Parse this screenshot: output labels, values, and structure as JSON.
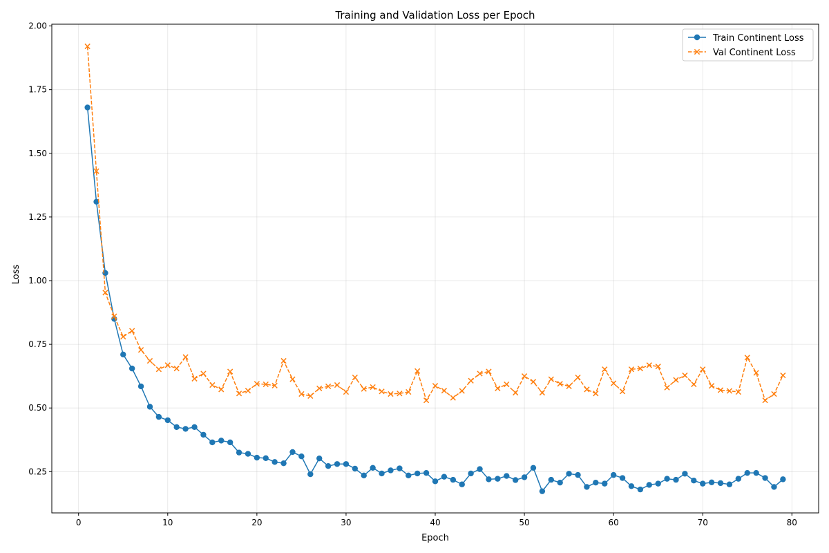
{
  "chart_data": {
    "type": "line",
    "title": "Training and Validation Loss per Epoch",
    "xlabel": "Epoch",
    "ylabel": "Loss",
    "xlim": [
      -3,
      83
    ],
    "ylim": [
      0.088,
      2.007
    ],
    "xticks": [
      0,
      10,
      20,
      30,
      40,
      50,
      60,
      70,
      80
    ],
    "yticks": [
      0.25,
      0.5,
      0.75,
      1.0,
      1.25,
      1.5,
      1.75,
      2.0
    ],
    "ytick_labels": [
      "0.25",
      "0.50",
      "0.75",
      "1.00",
      "1.25",
      "1.50",
      "1.75",
      "2.00"
    ],
    "grid": true,
    "legend_position": "top-right",
    "x": [
      1,
      2,
      3,
      4,
      5,
      6,
      7,
      8,
      9,
      10,
      11,
      12,
      13,
      14,
      15,
      16,
      17,
      18,
      19,
      20,
      21,
      22,
      23,
      24,
      25,
      26,
      27,
      28,
      29,
      30,
      31,
      32,
      33,
      34,
      35,
      36,
      37,
      38,
      39,
      40,
      41,
      42,
      43,
      44,
      45,
      46,
      47,
      48,
      49,
      50,
      51,
      52,
      53,
      54,
      55,
      56,
      57,
      58,
      59,
      60,
      61,
      62,
      63,
      64,
      65,
      66,
      67,
      68,
      69,
      70,
      71,
      72,
      73,
      74,
      75,
      76,
      77,
      78,
      79
    ],
    "series": [
      {
        "name": "Train Continent Loss",
        "color": "#1f77b4",
        "marker": "circle",
        "linestyle": "solid",
        "values": [
          1.68,
          1.31,
          1.03,
          0.85,
          0.71,
          0.655,
          0.585,
          0.505,
          0.465,
          0.452,
          0.425,
          0.418,
          0.425,
          0.395,
          0.365,
          0.372,
          0.365,
          0.325,
          0.32,
          0.305,
          0.303,
          0.288,
          0.283,
          0.327,
          0.31,
          0.24,
          0.302,
          0.272,
          0.28,
          0.28,
          0.262,
          0.235,
          0.265,
          0.243,
          0.255,
          0.263,
          0.235,
          0.243,
          0.245,
          0.212,
          0.23,
          0.218,
          0.2,
          0.243,
          0.26,
          0.22,
          0.222,
          0.233,
          0.217,
          0.228,
          0.265,
          0.173,
          0.218,
          0.207,
          0.242,
          0.237,
          0.19,
          0.207,
          0.203,
          0.237,
          0.225,
          0.193,
          0.18,
          0.198,
          0.203,
          0.222,
          0.218,
          0.242,
          0.215,
          0.203,
          0.208,
          0.205,
          0.2,
          0.222,
          0.245,
          0.245,
          0.225,
          0.19,
          0.22
        ]
      },
      {
        "name": "Val Continent Loss",
        "color": "#ff7f0e",
        "marker": "x",
        "linestyle": "dashed",
        "values": [
          1.92,
          1.43,
          0.953,
          0.86,
          0.78,
          0.803,
          0.728,
          0.685,
          0.652,
          0.668,
          0.655,
          0.7,
          0.615,
          0.635,
          0.59,
          0.573,
          0.643,
          0.557,
          0.568,
          0.595,
          0.593,
          0.588,
          0.685,
          0.613,
          0.555,
          0.547,
          0.577,
          0.585,
          0.59,
          0.563,
          0.62,
          0.575,
          0.582,
          0.565,
          0.555,
          0.557,
          0.563,
          0.645,
          0.53,
          0.587,
          0.568,
          0.54,
          0.567,
          0.607,
          0.635,
          0.643,
          0.577,
          0.593,
          0.56,
          0.625,
          0.603,
          0.56,
          0.613,
          0.595,
          0.585,
          0.62,
          0.573,
          0.557,
          0.652,
          0.597,
          0.565,
          0.652,
          0.655,
          0.668,
          0.663,
          0.58,
          0.61,
          0.628,
          0.593,
          0.652,
          0.587,
          0.57,
          0.567,
          0.563,
          0.698,
          0.638,
          0.53,
          0.555,
          0.628
        ]
      }
    ]
  }
}
